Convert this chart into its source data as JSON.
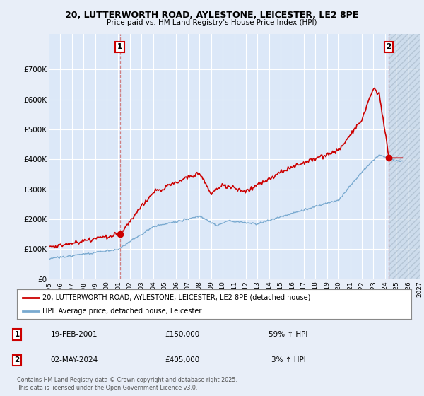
{
  "title": "20, LUTTERWORTH ROAD, AYLESTONE, LEICESTER, LE2 8PE",
  "subtitle": "Price paid vs. HM Land Registry's House Price Index (HPI)",
  "ylim": [
    0,
    820000
  ],
  "yticks": [
    0,
    100000,
    200000,
    300000,
    400000,
    500000,
    600000,
    700000
  ],
  "ytick_labels": [
    "£0",
    "£100K",
    "£200K",
    "£300K",
    "£400K",
    "£500K",
    "£600K",
    "£700K"
  ],
  "background_color": "#e8eef8",
  "plot_bg_color": "#dce8f8",
  "grid_color": "#ffffff",
  "red_color": "#cc0000",
  "blue_color": "#7aaad0",
  "annotation1_date": "19-FEB-2001",
  "annotation1_price": "£150,000",
  "annotation1_hpi": "59% ↑ HPI",
  "annotation2_date": "02-MAY-2024",
  "annotation2_price": "£405,000",
  "annotation2_hpi": "3% ↑ HPI",
  "vline1_x": 2001.13,
  "vline2_x": 2024.33,
  "sale1_x": 2001.13,
  "sale1_y": 150000,
  "sale2_x": 2024.33,
  "sale2_y": 405000,
  "xmin": 1995,
  "xmax": 2027,
  "hatch_start": 2024.33,
  "footer": "Contains HM Land Registry data © Crown copyright and database right 2025.\nThis data is licensed under the Open Government Licence v3.0.",
  "legend_label_red": "20, LUTTERWORTH ROAD, AYLESTONE, LEICESTER, LE2 8PE (detached house)",
  "legend_label_blue": "HPI: Average price, detached house, Leicester"
}
